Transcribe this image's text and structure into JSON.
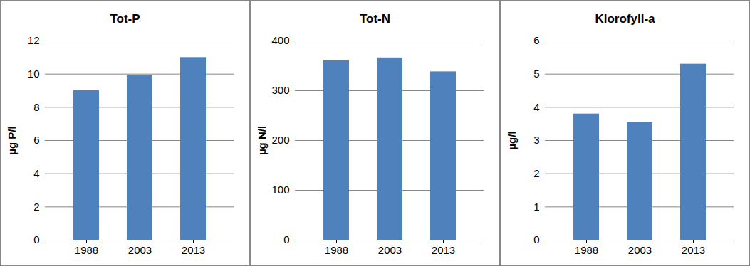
{
  "chart_data": [
    {
      "type": "bar",
      "title": "Tot-P",
      "ylabel": "µg P/l",
      "categories": [
        "1988",
        "2003",
        "2013"
      ],
      "values": [
        9.0,
        9.9,
        11.0
      ],
      "color": "#4f81bd",
      "ylim": [
        0,
        12
      ],
      "yticks": [
        0,
        2,
        4,
        6,
        8,
        10,
        12
      ],
      "grid": true
    },
    {
      "type": "bar",
      "title": "Tot-N",
      "ylabel": "µg N/l",
      "categories": [
        "1988",
        "2003",
        "2013"
      ],
      "values": [
        360,
        366,
        338
      ],
      "color": "#4f81bd",
      "ylim": [
        0,
        400
      ],
      "yticks": [
        0,
        100,
        200,
        300,
        400
      ],
      "grid": true
    },
    {
      "type": "bar",
      "title": "Klorofyll-a",
      "ylabel": "µg/l",
      "categories": [
        "1988",
        "2003",
        "2013"
      ],
      "values": [
        3.8,
        3.55,
        5.3
      ],
      "color": "#4f81bd",
      "ylim": [
        0,
        6
      ],
      "yticks": [
        0,
        1,
        2,
        3,
        4,
        5,
        6
      ],
      "grid": true
    }
  ]
}
